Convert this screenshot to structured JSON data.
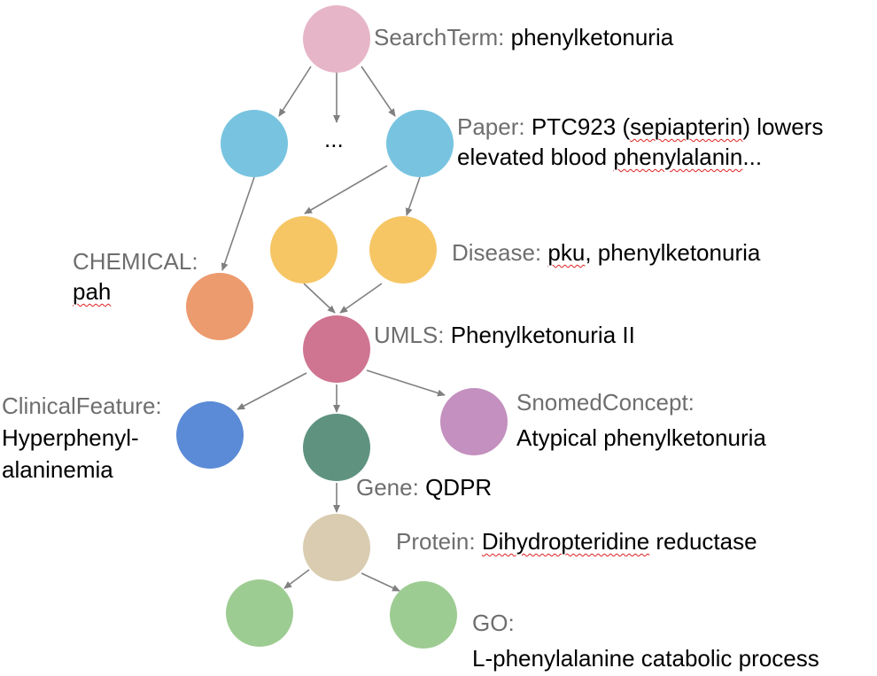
{
  "nodes": [
    {
      "id": "search",
      "color": "#e6b5c8"
    },
    {
      "id": "paper-left",
      "color": "#78c4e0"
    },
    {
      "id": "paper-right",
      "color": "#78c4e0"
    },
    {
      "id": "disease-left",
      "color": "#f6c665"
    },
    {
      "id": "disease-right",
      "color": "#f6c665"
    },
    {
      "id": "chemical",
      "color": "#ec9b6e"
    },
    {
      "id": "umls",
      "color": "#cf7491"
    },
    {
      "id": "clinical",
      "color": "#5b8bd6"
    },
    {
      "id": "gene",
      "color": "#5f937f"
    },
    {
      "id": "snomed",
      "color": "#c390bf"
    },
    {
      "id": "protein",
      "color": "#d9ccb0"
    },
    {
      "id": "go-left",
      "color": "#9dcc92"
    },
    {
      "id": "go-right",
      "color": "#9dcc92"
    }
  ],
  "labels": {
    "search_type": "SearchTerm:",
    "search_value": "phenylketonuria",
    "ellipsis": "...",
    "paper_type": "Paper:",
    "paper_value_1_pre": "PTC923 (",
    "paper_value_1_sq": "sepiapterin",
    "paper_value_1_post": ") lowers",
    "paper_value_2_pre": "elevated blood ",
    "paper_value_2_sq": "phenylalanin",
    "paper_value_2_post": "...",
    "disease_type": "Disease:",
    "disease_value_sq": "pku",
    "disease_value_rest": ", phenylketonuria",
    "chemical_type": "CHEMICAL:",
    "chemical_value": "pah",
    "umls_type": "UMLS:",
    "umls_value": "Phenylketonuria II",
    "clinical_type": "ClinicalFeature:",
    "clinical_value_1": "Hyperphenyl-",
    "clinical_value_2": "alaninemia",
    "snomed_type": "SnomedConcept:",
    "snomed_value": "Atypical phenylketonuria",
    "gene_type": "Gene:",
    "gene_value": "QDPR",
    "protein_type": "Protein:",
    "protein_value_sq": "Dihydropteridine",
    "protein_value_rest": " reductase",
    "go_type": "GO:",
    "go_value": "L-phenylalanine catabolic process"
  },
  "colors": {
    "edge": "#808080",
    "type_label": "#6e6e6e",
    "spellcheck": "#e02020"
  }
}
